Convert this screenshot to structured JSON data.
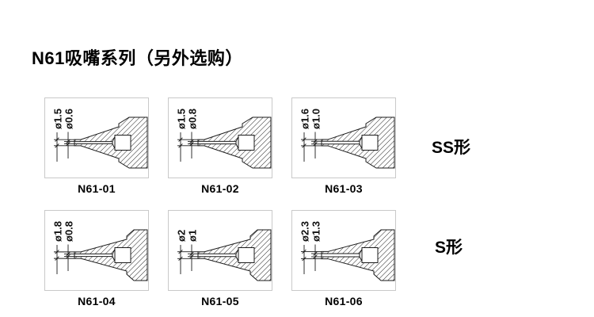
{
  "title": "N61吸嘴系列（另外选购）",
  "groups": [
    {
      "type_label": "SS形",
      "panels": [
        {
          "model": "N61-01",
          "outer_dia": "ø1.5",
          "inner_dia": "ø0.6"
        },
        {
          "model": "N61-02",
          "outer_dia": "ø1.5",
          "inner_dia": "ø0.8"
        },
        {
          "model": "N61-03",
          "outer_dia": "ø1.6",
          "inner_dia": "ø1.0"
        }
      ]
    },
    {
      "type_label": "S形",
      "panels": [
        {
          "model": "N61-04",
          "outer_dia": "ø1.8",
          "inner_dia": "ø0.8"
        },
        {
          "model": "N61-05",
          "outer_dia": "ø2",
          "inner_dia": "ø1"
        },
        {
          "model": "N61-06",
          "outer_dia": "ø2.3",
          "inner_dia": "ø1.3"
        }
      ]
    }
  ],
  "colors": {
    "background": "#ffffff",
    "line": "#1a1a1a",
    "box_border": "#c9c9c9",
    "text": "#000000"
  }
}
